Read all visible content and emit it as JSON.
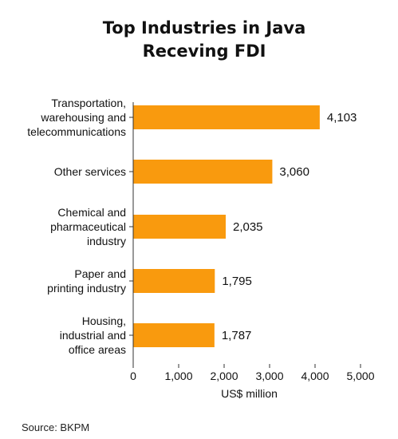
{
  "title_lines": [
    "Top Industries in Java",
    "Receving FDI"
  ],
  "source": "Source: BKPM",
  "colors": {
    "bar": "#f99a0e",
    "axis": "#333333",
    "text": "#111111"
  },
  "chart_data": {
    "type": "bar",
    "orientation": "horizontal",
    "title": "Top Industries in Java Receving FDI",
    "xlabel": "US$ million",
    "ylabel": "",
    "xlim": [
      0,
      5000
    ],
    "xticks": [
      0,
      1000,
      2000,
      3000,
      4000,
      5000
    ],
    "xtick_labels": [
      "0",
      "1,000",
      "2,000",
      "3,000",
      "4,000",
      "5,000"
    ],
    "grid": false,
    "categories": [
      [
        "Transportation,",
        "warehousing and",
        "telecommunications"
      ],
      [
        "Other services"
      ],
      [
        "Chemical and",
        "pharmaceutical",
        "industry"
      ],
      [
        "Paper and",
        "printing industry"
      ],
      [
        "Housing,",
        "industrial and",
        "office areas"
      ]
    ],
    "values": [
      4103,
      3060,
      2035,
      1795,
      1787
    ],
    "value_labels": [
      "4,103",
      "3,060",
      "2,035",
      "1,795",
      "1,787"
    ]
  }
}
